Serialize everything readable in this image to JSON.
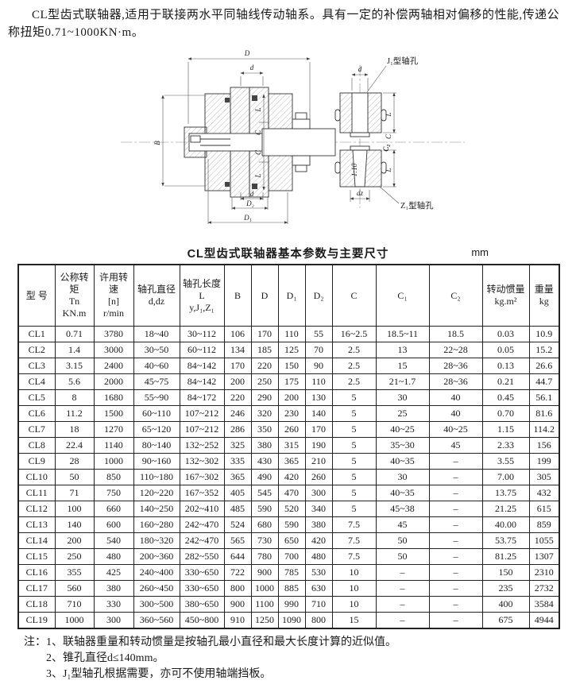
{
  "intro": {
    "text": "CL型齿式联轴器,适用于联接两水平同轴线传动轴系。具有一定的补偿两轴相对偏移的性能,传递公称扭矩0.71~1000KN·m。"
  },
  "diagram": {
    "labels": {
      "D": "D",
      "d": "d",
      "B": "B",
      "L": "L",
      "C": "C",
      "C2": "C₂",
      "D1": "D₁",
      "D2": "D₂",
      "dz": "dz",
      "taper": "1:10",
      "j1_hole": "J₁型轴孔",
      "z1_hole": "Z₁型轴孔"
    }
  },
  "table": {
    "title": "CL型齿式联轴器基本参数与主要尺寸",
    "unit": "mm",
    "headers": [
      "型 号",
      "公称转矩\nTn\nKN.m",
      "许用转速\n[n]\nr/min",
      "轴孔直径\nd,dz",
      "轴孔长度\nL\ny,J₁,Z₁",
      "B",
      "D",
      "D₁",
      "D₂",
      "C",
      "C₁",
      "C₂",
      "转动惯量\nkg.m²",
      "重量\nkg"
    ],
    "rows": [
      [
        "CL1",
        "0.71",
        "3780",
        "18~40",
        "30~112",
        "106",
        "170",
        "110",
        "55",
        "16~2.5",
        "18.5~11",
        "18.5",
        "0.03",
        "10.9"
      ],
      [
        "CL2",
        "1.4",
        "3000",
        "30~50",
        "60~112",
        "134",
        "185",
        "125",
        "70",
        "2.5",
        "13",
        "22~28",
        "0.05",
        "15.2"
      ],
      [
        "CL3",
        "3.15",
        "2400",
        "40~60",
        "84~142",
        "170",
        "220",
        "150",
        "90",
        "2.5",
        "15",
        "28~36",
        "0.13",
        "26.6"
      ],
      [
        "CL4",
        "5.6",
        "2000",
        "45~75",
        "84~142",
        "200",
        "250",
        "175",
        "110",
        "2.5",
        "21~1.7",
        "28~36",
        "0.21",
        "44.7"
      ],
      [
        "CL5",
        "8",
        "1680",
        "55~90",
        "84~172",
        "220",
        "290",
        "200",
        "130",
        "5",
        "30",
        "40",
        "0.45",
        "56.1"
      ],
      [
        "CL6",
        "11.2",
        "1500",
        "60~110",
        "107~212",
        "246",
        "320",
        "230",
        "140",
        "5",
        "25",
        "40",
        "0.70",
        "81.6"
      ],
      [
        "CL7",
        "18",
        "1270",
        "65~120",
        "107~212",
        "286",
        "350",
        "260",
        "170",
        "5",
        "40~25",
        "40~25",
        "1.15",
        "114.2"
      ],
      [
        "CL8",
        "22.4",
        "1140",
        "80~140",
        "132~252",
        "325",
        "380",
        "315",
        "190",
        "5",
        "35~30",
        "45",
        "2.33",
        "156"
      ],
      [
        "CL9",
        "28",
        "1000",
        "90~160",
        "132~302",
        "335",
        "430",
        "365",
        "210",
        "5",
        "40~35",
        "–",
        "3.55",
        "199"
      ],
      [
        "CL10",
        "50",
        "850",
        "110~180",
        "167~302",
        "365",
        "490",
        "420",
        "260",
        "5",
        "30",
        "–",
        "7.00",
        "305"
      ],
      [
        "CL11",
        "71",
        "750",
        "120~220",
        "167~352",
        "405",
        "545",
        "470",
        "300",
        "5",
        "40~35",
        "–",
        "13.75",
        "432"
      ],
      [
        "CL12",
        "100",
        "660",
        "140~250",
        "202~410",
        "485",
        "590",
        "520",
        "340",
        "5",
        "45~38",
        "–",
        "21.25",
        "615"
      ],
      [
        "CL13",
        "140",
        "600",
        "160~280",
        "242~470",
        "524",
        "680",
        "590",
        "380",
        "7.5",
        "45",
        "–",
        "40.00",
        "859"
      ],
      [
        "CL14",
        "200",
        "540",
        "180~320",
        "242~470",
        "565",
        "730",
        "650",
        "420",
        "7.5",
        "50",
        "–",
        "53.75",
        "1055"
      ],
      [
        "CL15",
        "250",
        "480",
        "200~360",
        "282~550",
        "644",
        "780",
        "700",
        "480",
        "7.5",
        "50",
        "–",
        "81.25",
        "1307"
      ],
      [
        "CL16",
        "355",
        "425",
        "240~400",
        "330~650",
        "722",
        "900",
        "785",
        "530",
        "10",
        "–",
        "–",
        "150",
        "2310"
      ],
      [
        "CL17",
        "560",
        "380",
        "260~450",
        "330~650",
        "800",
        "1000",
        "885",
        "630",
        "10",
        "–",
        "–",
        "235",
        "2732"
      ],
      [
        "CL18",
        "710",
        "330",
        "300~500",
        "380~650",
        "900",
        "1100",
        "990",
        "710",
        "10",
        "–",
        "–",
        "400",
        "3584"
      ],
      [
        "CL19",
        "1000",
        "300",
        "360~560",
        "450~800",
        "910",
        "1250",
        "1090",
        "800",
        "15",
        "–",
        "–",
        "675",
        "4944"
      ]
    ]
  },
  "notes": {
    "prefix": "注：",
    "items": [
      "1、联轴器重量和转动惯量是按轴孔最小直径和最大长度计算的近似值。",
      "2、锥孔直径d≤140mm。",
      "3、J₁型轴孔根据需要，亦可不使用轴端挡板。"
    ]
  }
}
